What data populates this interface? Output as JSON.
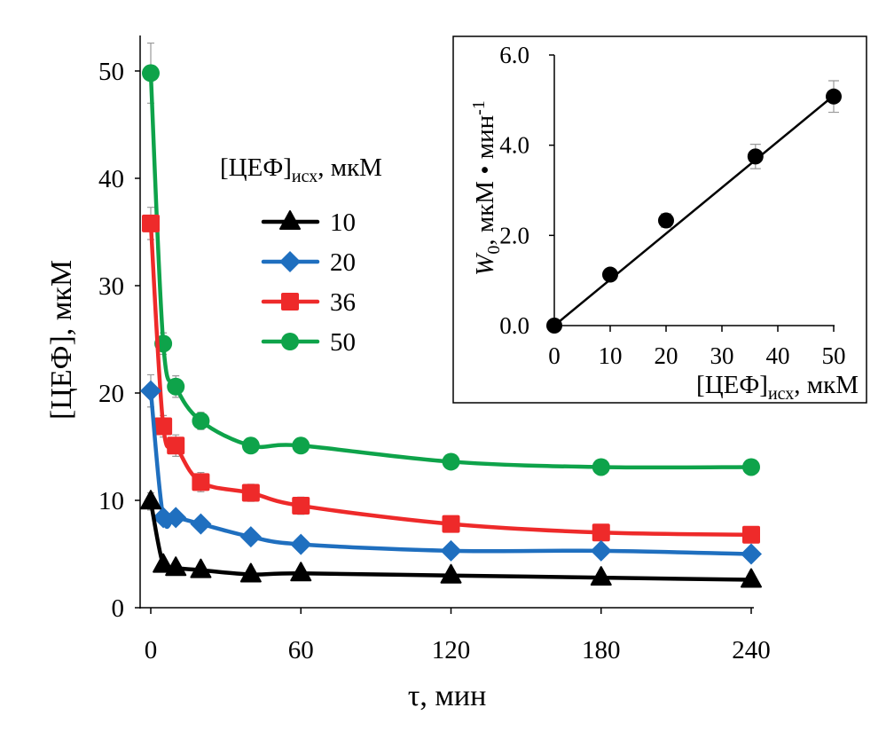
{
  "chart_data": [
    {
      "type": "line",
      "xlabel": "τ, мин",
      "ylabel": "[ЦЕФ], мкМ",
      "xlim": [
        0,
        240
      ],
      "ylim": [
        0,
        50
      ],
      "xticks": [
        "0",
        "60",
        "120",
        "180",
        "240"
      ],
      "yticks": [
        "0",
        "10",
        "20",
        "30",
        "40",
        "50"
      ],
      "grid": false,
      "legend": {
        "title_main": "[ЦЕФ]",
        "title_sub": "исх",
        "title_unit": ", мкМ",
        "placement": "center"
      },
      "x": [
        0,
        5,
        10,
        20,
        40,
        60,
        120,
        180,
        240
      ],
      "series": [
        {
          "name": "10",
          "color": "#000000",
          "marker": "triangle",
          "values": [
            9.9,
            4.0,
            3.7,
            3.5,
            3.1,
            3.2,
            3.0,
            2.8,
            2.6
          ],
          "errors": [
            0.8,
            0.4,
            0.4,
            0.4,
            0.3,
            0.3,
            0.3,
            0.3,
            0.3
          ]
        },
        {
          "name": "20",
          "color": "#1f6fbf",
          "marker": "diamond",
          "values": [
            20.2,
            8.4,
            8.4,
            7.8,
            6.6,
            5.9,
            5.3,
            5.3,
            5.0
          ],
          "errors": [
            1.5,
            0.6,
            0.6,
            0.6,
            0.5,
            0.5,
            0.4,
            0.4,
            0.4
          ]
        },
        {
          "name": "36",
          "color": "#ee2a2a",
          "marker": "square",
          "values": [
            35.8,
            16.9,
            15.1,
            11.7,
            10.7,
            9.5,
            7.8,
            7.0,
            6.8
          ],
          "errors": [
            1.5,
            1.0,
            1.0,
            0.9,
            0.8,
            0.8,
            0.6,
            0.5,
            0.5
          ]
        },
        {
          "name": "50",
          "color": "#0ea34a",
          "marker": "circle",
          "values": [
            49.8,
            24.6,
            20.6,
            17.4,
            15.1,
            15.1,
            13.6,
            13.1,
            13.1
          ],
          "errors": [
            2.8,
            1.0,
            1.0,
            0.8,
            0.7,
            0.7,
            0.6,
            0.6,
            0.5
          ]
        }
      ]
    },
    {
      "type": "scatter",
      "inset": true,
      "xlabel_main": "[ЦЕФ]",
      "xlabel_sub": "исх",
      "xlabel_unit": ", мкМ",
      "ylabel_var": "W",
      "ylabel_sub": "0",
      "ylabel_unit": ", мкМ • мин",
      "ylabel_sup": "-1",
      "xlim": [
        0,
        50
      ],
      "ylim": [
        0,
        6
      ],
      "xticks": [
        "0",
        "10",
        "20",
        "30",
        "40",
        "50"
      ],
      "yticks": [
        "0.0",
        "2.0",
        "4.0",
        "6.0"
      ],
      "x": [
        0,
        10,
        20,
        36,
        50
      ],
      "values": [
        0,
        1.13,
        2.33,
        3.75,
        5.08
      ],
      "errors": [
        0,
        0.05,
        0.15,
        0.27,
        0.35
      ],
      "trendline": {
        "type": "linear",
        "from": [
          0,
          0
        ],
        "to": [
          50,
          5.1
        ]
      },
      "color": "#000000"
    }
  ]
}
